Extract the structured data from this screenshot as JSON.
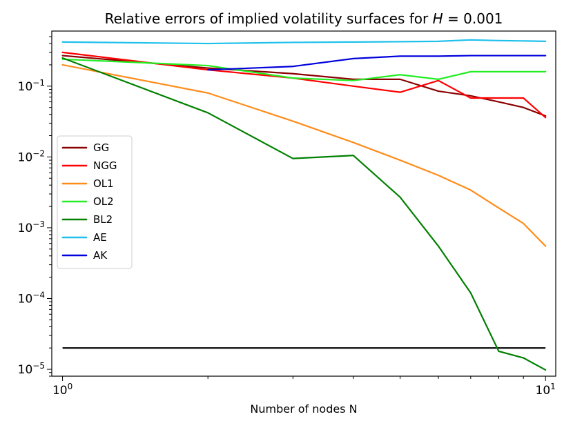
{
  "chart_data": {
    "type": "line",
    "title": "Relative errors of implied volatility surfaces for ",
    "title_math": {
      "variable": "H",
      "equals": " = ",
      "value": "0.001"
    },
    "xlabel": "Number of nodes N",
    "ylabel": "",
    "xscale": "log",
    "yscale": "log",
    "xlim": [
      0.95,
      10.5
    ],
    "ylim": [
      8e-06,
      0.6
    ],
    "x": [
      1,
      2,
      3,
      4,
      5,
      6,
      7,
      8,
      9,
      10
    ],
    "x_ticks": [
      {
        "value": 1,
        "base": "10",
        "exp": "0"
      },
      {
        "value": 10,
        "base": "10",
        "exp": "1"
      }
    ],
    "y_ticks": [
      {
        "value": 1e-05,
        "base": "10",
        "exp": "−5"
      },
      {
        "value": 0.0001,
        "base": "10",
        "exp": "−4"
      },
      {
        "value": 0.001,
        "base": "10",
        "exp": "−3"
      },
      {
        "value": 0.01,
        "base": "10",
        "exp": "−2"
      },
      {
        "value": 0.1,
        "base": "10",
        "exp": "−1"
      }
    ],
    "reference_line": {
      "x": [
        1,
        10
      ],
      "y": [
        2e-05,
        2e-05
      ],
      "color": "#000000"
    },
    "series": [
      {
        "name": "GG",
        "color": "#8b0000",
        "values": [
          0.27,
          0.18,
          0.15,
          0.125,
          0.125,
          0.085,
          0.073,
          0.06,
          0.05,
          0.038
        ]
      },
      {
        "name": "NGG",
        "color": "#ff0000",
        "values": [
          0.3,
          0.17,
          0.13,
          0.1,
          0.082,
          0.12,
          0.068,
          0.068,
          0.068,
          0.036
        ]
      },
      {
        "name": "OL1",
        "color": "#ff8c1a",
        "values": [
          0.2,
          0.08,
          0.032,
          0.016,
          0.009,
          0.0055,
          0.0034,
          0.0019,
          0.00115,
          0.00055
        ]
      },
      {
        "name": "OL2",
        "color": "#22ee22",
        "values": [
          0.24,
          0.195,
          0.13,
          0.12,
          0.145,
          0.125,
          0.16,
          0.16,
          0.16,
          0.16
        ]
      },
      {
        "name": "BL2",
        "color": "#008000",
        "values": [
          0.25,
          0.042,
          0.0095,
          0.0105,
          0.0027,
          0.00055,
          0.00012,
          1.8e-05,
          1.45e-05,
          9.8e-06
        ]
      },
      {
        "name": "AE",
        "color": "#1ec0ec",
        "values": [
          0.42,
          0.4,
          0.415,
          0.42,
          0.425,
          0.43,
          0.45,
          0.44,
          0.435,
          0.43
        ]
      },
      {
        "name": "AK",
        "color": "#0000dd",
        "values": [
          null,
          0.17,
          0.19,
          0.245,
          0.265,
          0.265,
          0.27,
          0.27,
          0.27,
          0.27
        ]
      }
    ]
  }
}
